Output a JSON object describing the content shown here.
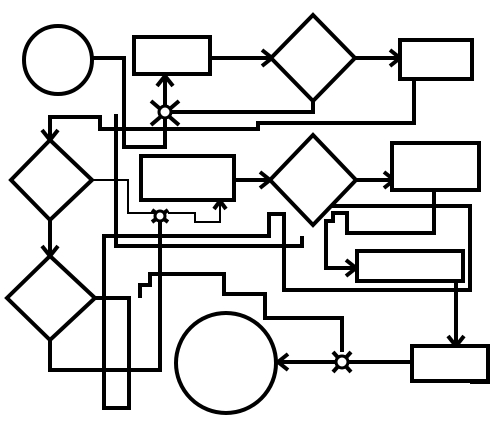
{
  "diagram": {
    "kind": "flowchart",
    "labels": [],
    "colors": {
      "stroke": "#000000",
      "fill": "#ffffff",
      "background": "#ffffff"
    }
  }
}
